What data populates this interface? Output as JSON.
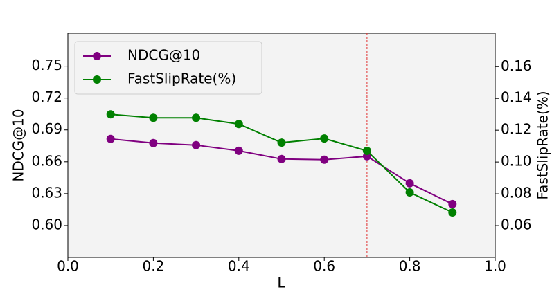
{
  "chart_data": {
    "type": "line",
    "xlabel": "L",
    "ylabel": "NDCG@10",
    "y2label": "FastSlipRate(%)",
    "x": [
      0.1,
      0.2,
      0.3,
      0.4,
      0.5,
      0.6,
      0.7,
      0.8,
      0.9
    ],
    "series": [
      {
        "name": "NDCG@10",
        "color": "#800080",
        "axis": "y",
        "values": [
          0.6815,
          0.6776,
          0.6757,
          0.6704,
          0.6626,
          0.662,
          0.6652,
          0.6398,
          0.6202
        ]
      },
      {
        "name": "FastSlipRate(%)",
        "color": "#008000",
        "axis": "y2",
        "values": [
          0.13,
          0.1278,
          0.1278,
          0.1239,
          0.1122,
          0.1148,
          0.107,
          0.0809,
          0.0683
        ]
      }
    ],
    "xlim": [
      0,
      1
    ],
    "xticks": [
      {
        "value": 0,
        "label": "0.0"
      },
      0.2,
      0.4,
      0.6,
      0.8,
      {
        "value": 1,
        "label": "1.0"
      }
    ],
    "ylim": [
      0.57,
      0.781
    ],
    "yticks": [
      {
        "value": 0.6,
        "label": "0.60"
      },
      0.63,
      0.66,
      0.69,
      0.72,
      0.75
    ],
    "y2lim": [
      0.04,
      0.181
    ],
    "y2ticks": [
      0.06,
      0.08,
      {
        "value": 0.1,
        "label": "0.10"
      },
      0.12,
      0.14,
      0.16
    ],
    "vline": {
      "value": 0.7,
      "color": "#e03030"
    },
    "legend": "upper left"
  }
}
